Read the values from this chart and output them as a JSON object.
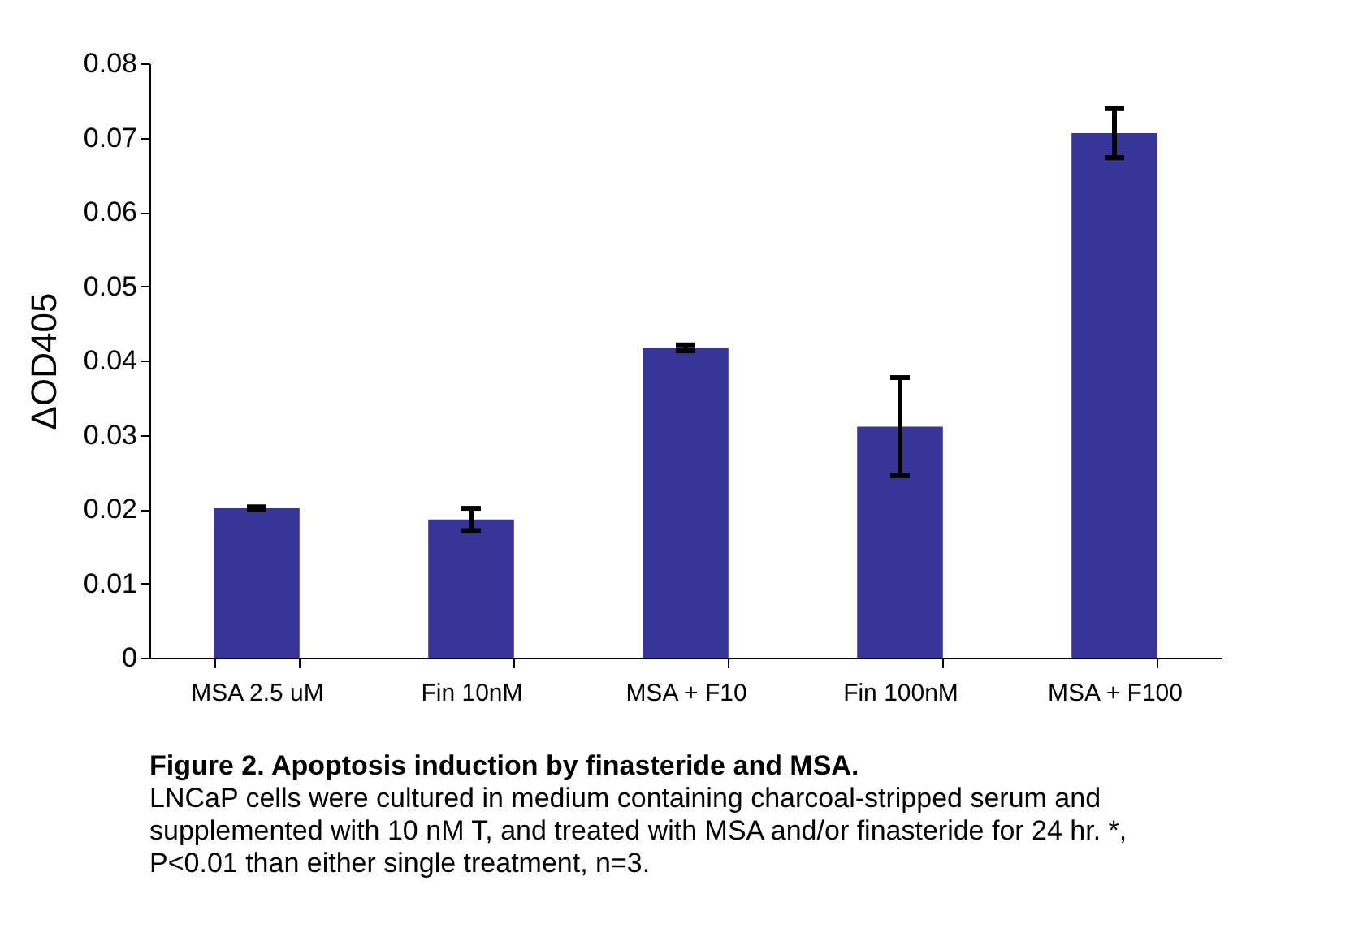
{
  "chart_data": {
    "type": "bar",
    "ylabel": "ΔOD405",
    "categories": [
      "MSA 2.5 uM",
      "Fin 10nM",
      "MSA + F10",
      "Fin 100nM",
      "MSA + F100"
    ],
    "values": [
      0.0201,
      0.0186,
      0.0417,
      0.0311,
      0.0706
    ],
    "errors": [
      0.0002,
      0.0015,
      0.0004,
      0.0066,
      0.0033
    ],
    "color": "#363699",
    "ylim": [
      0,
      0.08
    ],
    "yticks": [
      0,
      0.01,
      0.02,
      0.03,
      0.04,
      0.05,
      0.06,
      0.07,
      0.08
    ],
    "grid": false,
    "annotations": [
      "Figure 2.  Apoptosis induction by finasteride and MSA.",
      "LNCaP cells were cultured in medium containing charcoal-stripped serum and supplemented with 10 nM T, and treated with MSA and/or finasteride for 24 hr.   *, P<0.01 than either single treatment, n=3."
    ]
  }
}
